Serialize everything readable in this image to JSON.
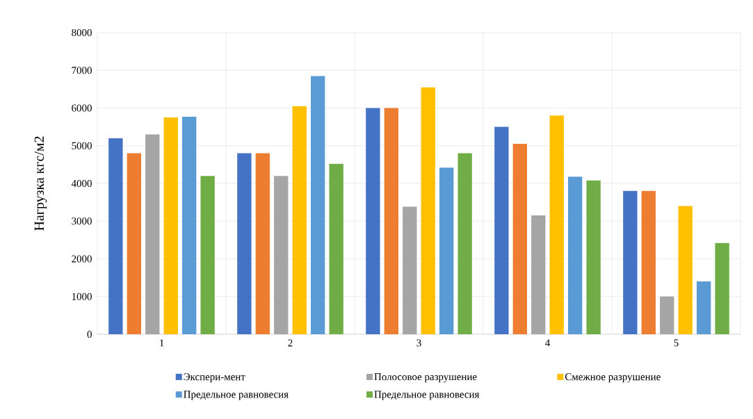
{
  "chart_data": {
    "type": "bar",
    "ylabel": "Нагрузка кгс/м2",
    "categories": [
      "1",
      "2",
      "3",
      "4",
      "5"
    ],
    "series": [
      {
        "name": "Экспери-мент",
        "color": "#4472c4",
        "values": [
          5200,
          4800,
          6000,
          5500,
          3800
        ]
      },
      {
        "color": "#ed7d31",
        "values": [
          4800,
          4800,
          6000,
          5050,
          3800
        ]
      },
      {
        "name": "Полосовое разрушение",
        "color": "#a5a5a5",
        "values": [
          5300,
          4200,
          3380,
          3150,
          1000
        ]
      },
      {
        "name": "Смежное разрушение",
        "color": "#ffc000",
        "values": [
          5750,
          6050,
          6550,
          5800,
          3400
        ]
      },
      {
        "name": "Предельное равновесия",
        "color": "#5b9bd5",
        "values": [
          5770,
          6850,
          4420,
          4180,
          1400
        ]
      },
      {
        "name": "Предельное равновесия",
        "color": "#70ad47",
        "values": [
          4200,
          4520,
          4800,
          4080,
          2420
        ]
      }
    ],
    "ylim": [
      0,
      8000
    ],
    "yticks": [
      0,
      1000,
      2000,
      3000,
      4000,
      5000,
      6000,
      7000,
      8000
    ],
    "grid": true,
    "legend": "bottom"
  }
}
